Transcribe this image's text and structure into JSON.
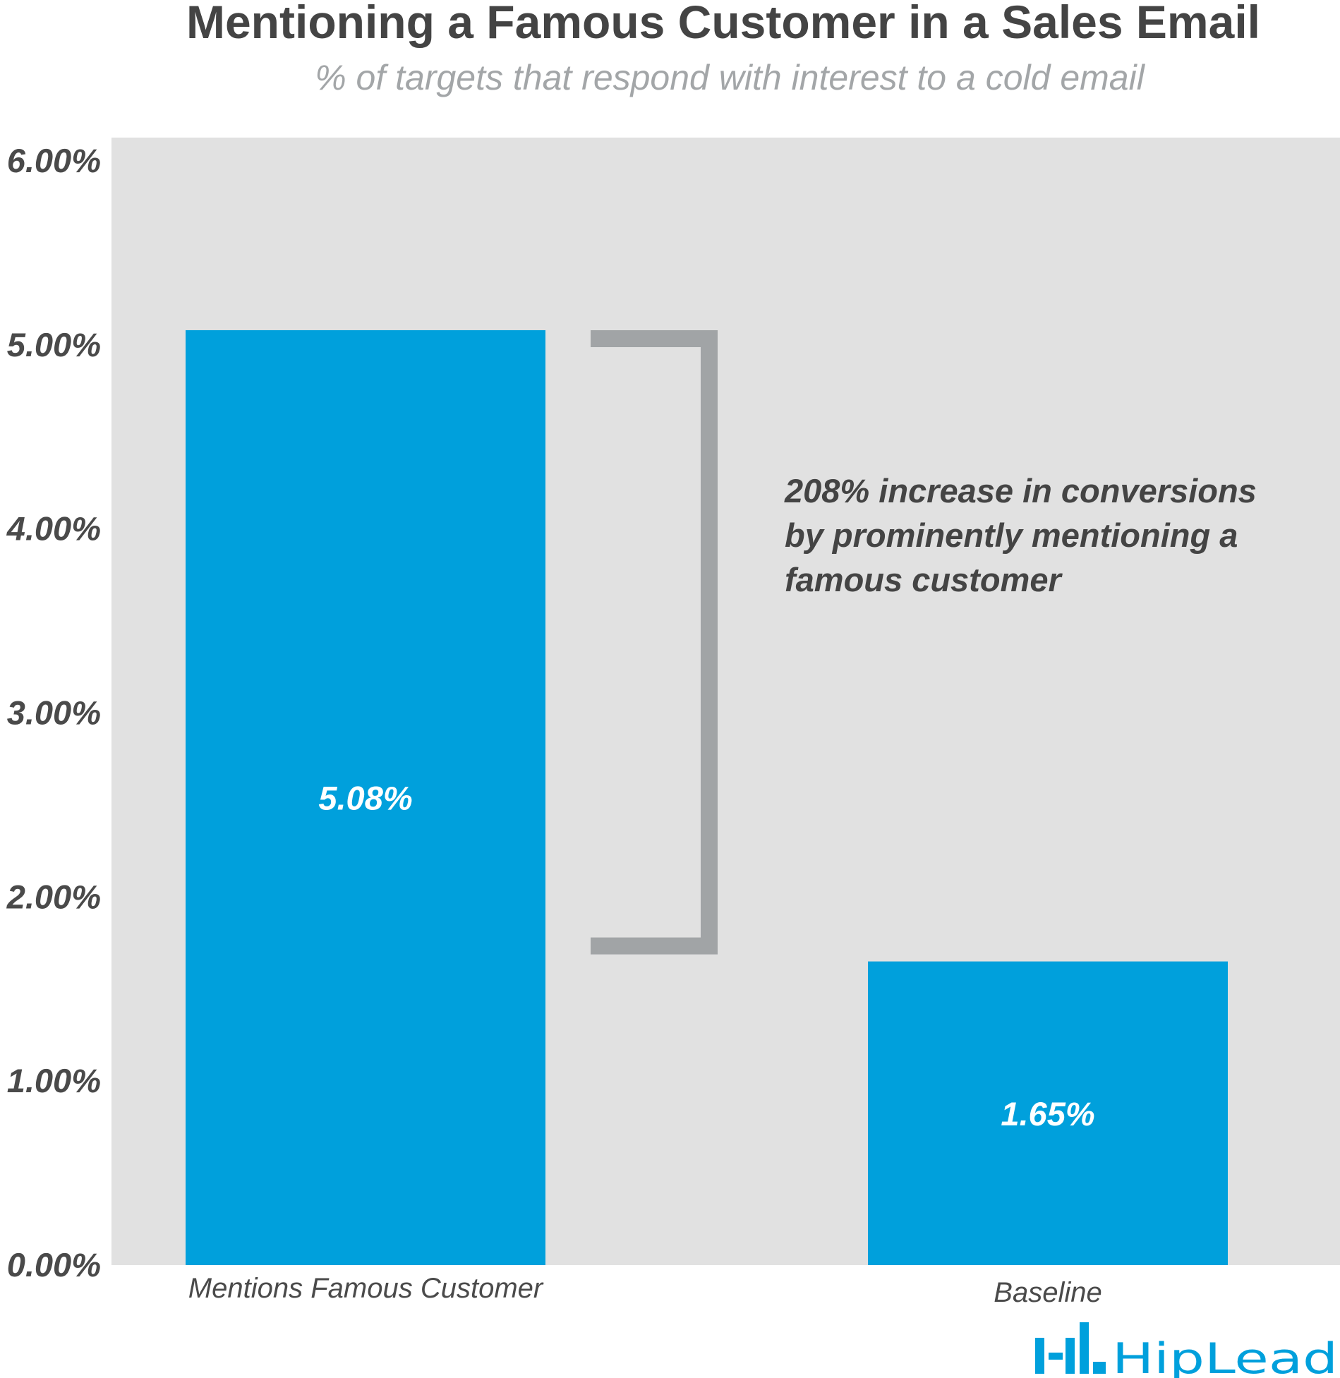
{
  "colors": {
    "title": "#444444",
    "subtitle": "#a3a6a8",
    "plot_background": "#e1e1e1",
    "bar": "#00a0dc",
    "bar_label": "#ffffff",
    "tick_label": "#4a4a4a",
    "bracket": "#a1a4a6",
    "annotation": "#444444",
    "logo": "#00a0dc"
  },
  "logo": {
    "text": "HipLead",
    "icon": "hiplead-bars-icon"
  },
  "chart_data": {
    "type": "bar",
    "title": "Mentioning a Famous Customer in a Sales Email",
    "subtitle": "% of targets that respond with interest to a cold email",
    "xlabel": "",
    "ylabel": "",
    "categories": [
      "Mentions Famous Customer",
      "Baseline"
    ],
    "values": [
      5.08,
      1.65
    ],
    "value_labels": [
      "5.08%",
      "1.65%"
    ],
    "ylim": [
      0,
      6
    ],
    "yticks": [
      0,
      1,
      2,
      3,
      4,
      5,
      6
    ],
    "ytick_labels": [
      "0.00%",
      "1.00%",
      "2.00%",
      "3.00%",
      "4.00%",
      "5.00%",
      "6.00%"
    ],
    "grid": false,
    "legend": "none",
    "annotation": {
      "lines": [
        "208% increase in conversions",
        "by prominently mentioning a",
        "famous customer"
      ],
      "bracket_from": 5.08,
      "bracket_to": 1.65
    }
  }
}
